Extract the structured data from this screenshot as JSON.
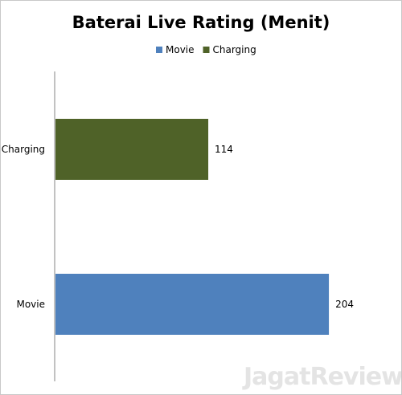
{
  "chart_data": {
    "type": "bar",
    "orientation": "horizontal",
    "title": "Baterai Live Rating (Menit)",
    "categories": [
      "Charging",
      "Movie"
    ],
    "series": [
      {
        "name": "Movie",
        "values": [
          null,
          204
        ],
        "color": "#4f81bd"
      },
      {
        "name": "Charging",
        "values": [
          114,
          null
        ],
        "color": "#4f6228"
      }
    ],
    "xlim": [
      0,
      250
    ],
    "grid": false,
    "legend_position": "top"
  },
  "watermark": "JagatReview"
}
